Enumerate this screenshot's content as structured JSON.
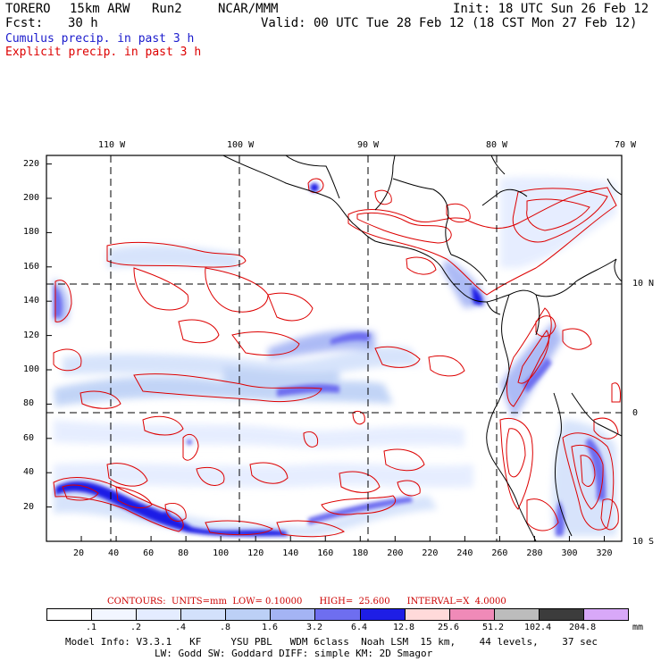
{
  "header": {
    "model": "TORERO",
    "resolution": "15km ARW",
    "run": "Run2",
    "org": "NCAR/MMM",
    "init": "Init: 18 UTC Sun 26 Feb 12",
    "fcst_label": "Fcst:",
    "fcst_value": "30 h",
    "valid": "Valid: 00 UTC Tue 28 Feb 12 (18 CST Mon 27 Feb 12)",
    "field1": "Cumulus precip. in past 3 h",
    "field2": "Explicit precip. in past 3 h",
    "field1_color": "#1a1acc",
    "field2_color": "#dd0000"
  },
  "map": {
    "top_lon_labels": [
      "110 W",
      "100 W",
      "90 W",
      "80 W",
      "70 W"
    ],
    "right_lat_labels": [
      "10 N",
      "0",
      "10 S"
    ],
    "y_ticks": [
      "220",
      "200",
      "180",
      "160",
      "140",
      "120",
      "100",
      "80",
      "60",
      "40",
      "20"
    ],
    "x_ticks": [
      "20",
      "40",
      "60",
      "80",
      "100",
      "120",
      "140",
      "160",
      "180",
      "200",
      "220",
      "240",
      "260",
      "280",
      "300",
      "320"
    ],
    "x_range": [
      0,
      330
    ],
    "y_range": [
      0,
      225
    ],
    "land_color": "#000000",
    "grid_color": "#000000",
    "contour_color": "#dd0000"
  },
  "contours_info": {
    "label": "CONTOURS:  UNITS=mm  LOW= 0.10000      HIGH=  25.600      INTERVAL=X  4.0000",
    "color": "#cc0000"
  },
  "colorbar": {
    "labels": [
      ".1",
      ".2",
      ".4",
      ".8",
      "1.6",
      "3.2",
      "6.4",
      "12.8",
      "25.6",
      "51.2",
      "102.4",
      "204.8"
    ],
    "colors": [
      "#ffffff",
      "#f2f6ff",
      "#e4ecff",
      "#d3e1fb",
      "#bcd0f6",
      "#a4b4f4",
      "#6e6ef0",
      "#1e1ee6",
      "#ffdada",
      "#f08ab8",
      "#bcbcbc",
      "#3c3c3c",
      "#d8a8f8"
    ],
    "unit": "mm"
  },
  "footer": {
    "line1": "Model Info: V3.3.1   KF     YSU PBL   WDM 6class  Noah LSM  15 km,    44 levels,    37 sec",
    "line2": "LW: Godd SW: Goddard DIFF: simple KM: 2D Smagor"
  }
}
